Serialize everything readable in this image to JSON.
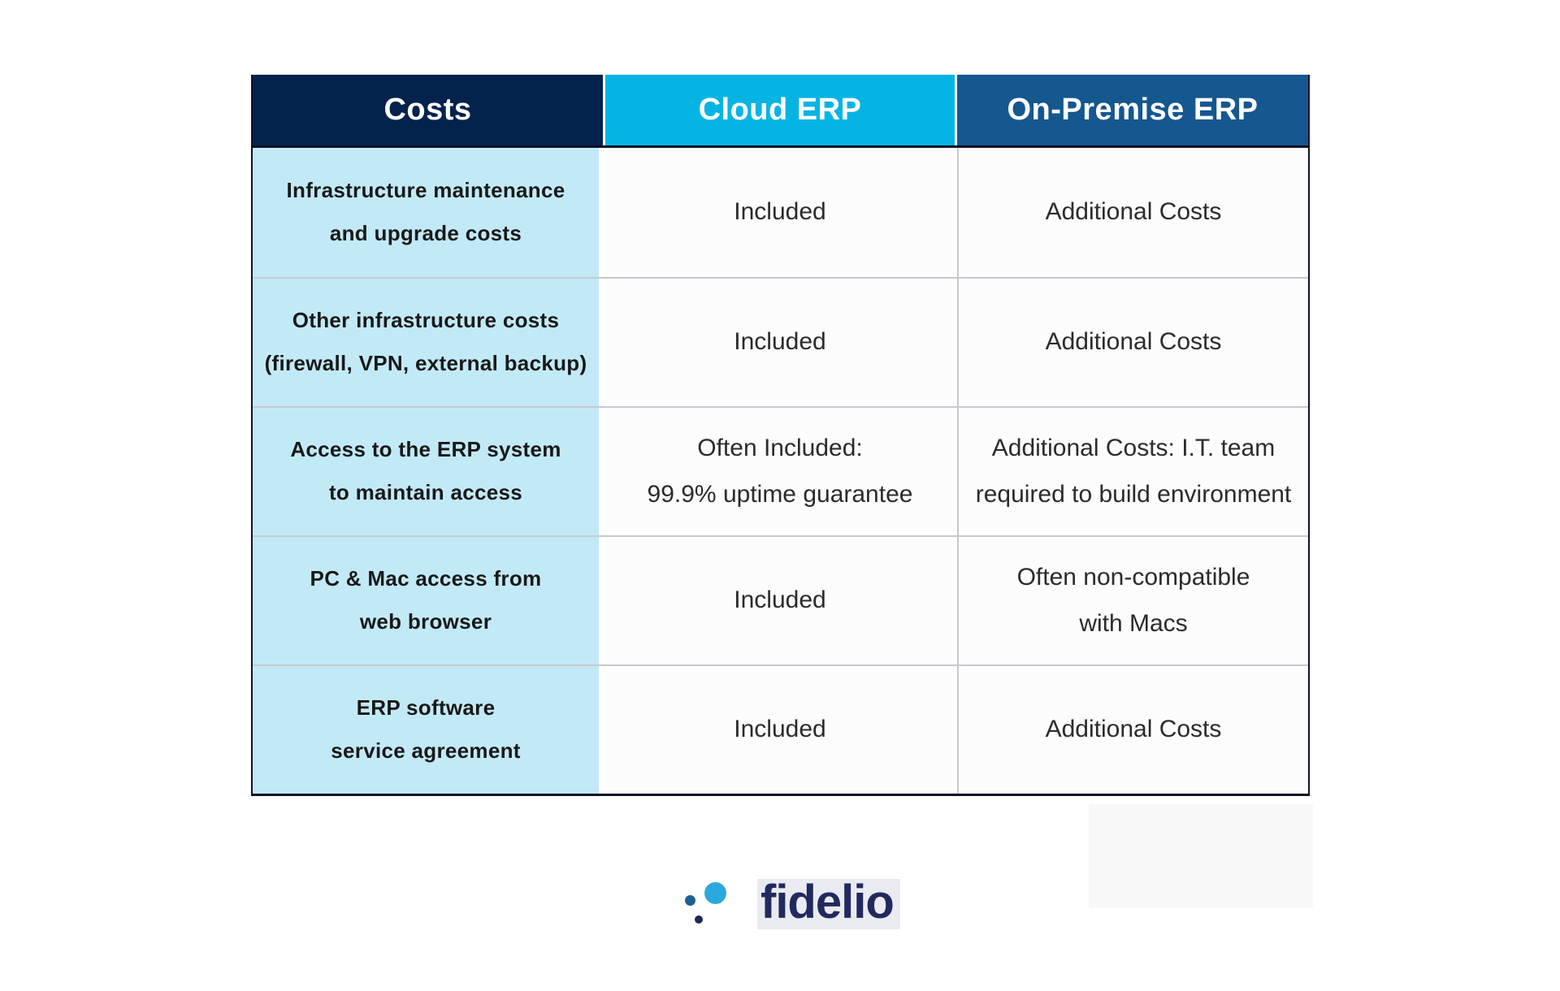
{
  "chart_data": {
    "type": "table",
    "title": "",
    "columns": [
      "Costs",
      "Cloud ERP",
      "On-Premise ERP"
    ],
    "rows": [
      [
        "Infrastructure maintenance and upgrade costs",
        "Included",
        "Additional Costs"
      ],
      [
        "Other infrastructure costs (firewall, VPN, external backup)",
        "Included",
        "Additional Costs"
      ],
      [
        "Access to the ERP system to maintain access",
        "Often Included: 99.9% uptime guarantee",
        "Additional Costs: I.T. team required to build environment"
      ],
      [
        "PC & Mac access from web browser",
        "Included",
        "Often non-compatible with Macs"
      ],
      [
        "ERP software service agreement",
        "Included",
        "Additional Costs"
      ]
    ]
  },
  "table": {
    "headers": [
      {
        "label": "Costs"
      },
      {
        "label": "Cloud ERP"
      },
      {
        "label": "On-Premise ERP"
      }
    ],
    "rows": [
      {
        "cost": [
          "Infrastructure maintenance",
          "and upgrade costs"
        ],
        "cloud": [
          "Included"
        ],
        "onprem": [
          "Additional Costs"
        ]
      },
      {
        "cost": [
          "Other infrastructure costs",
          "(firewall, VPN, external backup)"
        ],
        "cloud": [
          "Included"
        ],
        "onprem": [
          "Additional Costs"
        ]
      },
      {
        "cost": [
          "Access to the ERP system",
          "to maintain access"
        ],
        "cloud": [
          "Often Included:",
          "99.9% uptime guarantee"
        ],
        "onprem": [
          "Additional Costs: I.T. team",
          "required to build environment"
        ]
      },
      {
        "cost": [
          "PC & Mac access from",
          "web browser"
        ],
        "cloud": [
          "Included"
        ],
        "onprem": [
          "Often non-compatible",
          "with Macs"
        ]
      },
      {
        "cost": [
          "ERP software",
          "service agreement"
        ],
        "cloud": [
          "Included"
        ],
        "onprem": [
          "Additional Costs"
        ]
      }
    ]
  },
  "logo": {
    "text": "fidelio"
  },
  "colors": {
    "navy": "#04234c",
    "cyan": "#06b4e4",
    "blue": "#15578f",
    "lightblue": "#c2eaf6",
    "cellbg": "#fcfcfd",
    "rowline": "#c7c9d1",
    "outer": "#101227",
    "text-dark": "#191919",
    "text-val": "#2b2b2b",
    "logo-navy": "#212a5e",
    "dot-big": "#2aa9dc",
    "dot-mid": "#1d5f93",
    "dot-small": "#1b2c52",
    "artifact": "#f8f8f9",
    "logo-bg": "#e9ebf0"
  }
}
